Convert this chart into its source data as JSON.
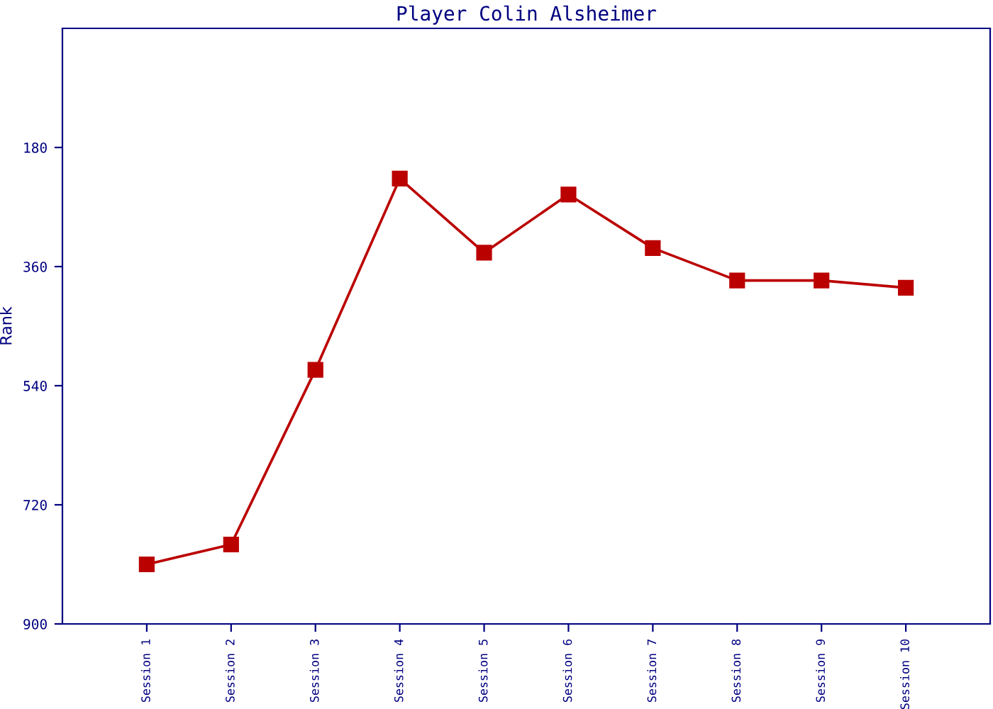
{
  "chart_data": {
    "type": "line",
    "title": "Player Colin Alsheimer",
    "ylabel": "Rank",
    "categories": [
      "Session 1",
      "Session 2",
      "Session 3",
      "Session 4",
      "Session 5",
      "Session 6",
      "Session 7",
      "Session 8",
      "Session 9",
      "Session 10"
    ],
    "series": [
      {
        "color": "#bb0000",
        "values": [
          810,
          780,
          516,
          227,
          339,
          251,
          332,
          381,
          381,
          392
        ]
      }
    ],
    "ylim": [
      900,
      0
    ],
    "yticks": [
      180,
      360,
      540,
      720,
      900
    ],
    "marker": "square",
    "line_style": "solid",
    "grid": false
  }
}
